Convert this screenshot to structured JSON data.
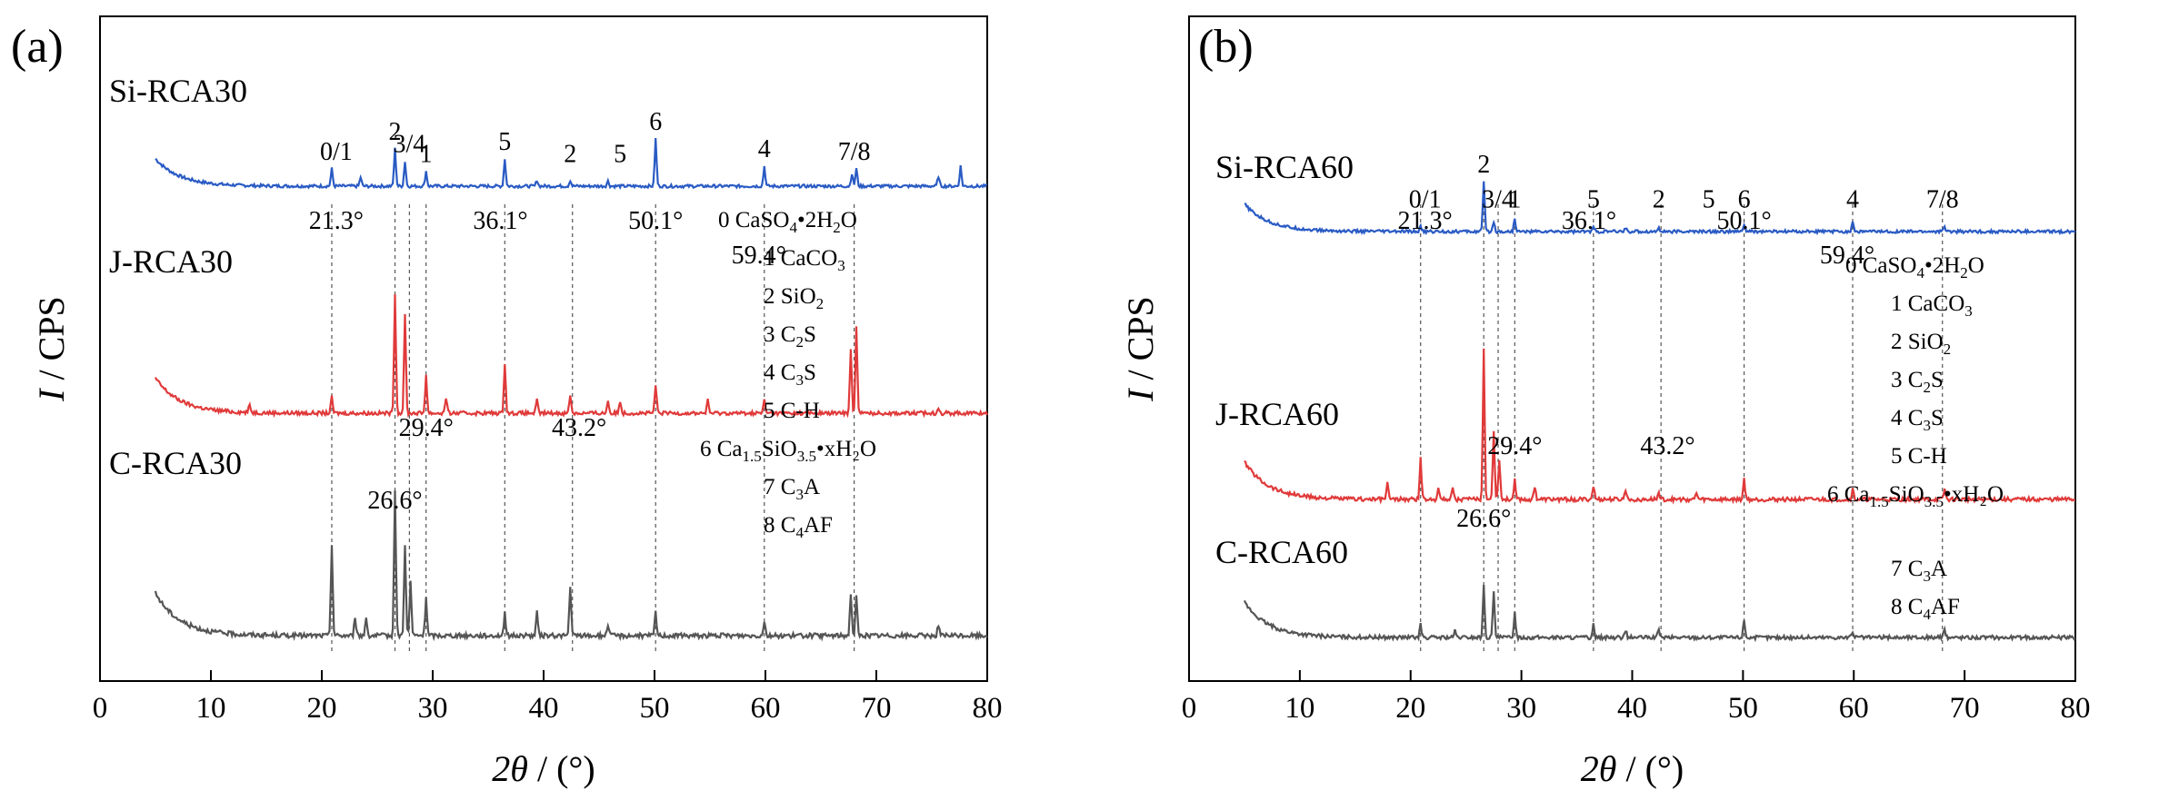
{
  "chart_data": [
    {
      "panel": "(a)",
      "type": "line",
      "ylabel_italic": "I",
      "ylabel_rest": " / CPS",
      "xlabel_theta": "2θ",
      "xlabel_rest": " / (°)",
      "xlim": [
        0,
        80
      ],
      "xticks": [
        0,
        10,
        20,
        30,
        40,
        50,
        60,
        70,
        80
      ],
      "series": [
        {
          "name": "Si-RCA30",
          "color": "#2a5bc4",
          "baseline": 2.15,
          "peaks": [
            [
              20.9,
              0.35
            ],
            [
              23.5,
              0.18
            ],
            [
              26.6,
              0.75
            ],
            [
              27.5,
              0.5
            ],
            [
              29.4,
              0.3
            ],
            [
              36.5,
              0.55
            ],
            [
              39.4,
              0.12
            ],
            [
              42.4,
              0.12
            ],
            [
              45.8,
              0.1
            ],
            [
              50.1,
              0.95
            ],
            [
              59.9,
              0.4
            ],
            [
              67.8,
              0.25
            ],
            [
              68.2,
              0.35
            ],
            [
              75.6,
              0.2
            ],
            [
              77.6,
              0.4
            ]
          ]
        },
        {
          "name": "J-RCA30",
          "color": "#e03a3a",
          "baseline": 1.2,
          "peaks": [
            [
              13.5,
              0.12
            ],
            [
              20.9,
              0.25
            ],
            [
              26.6,
              1.9
            ],
            [
              27.5,
              1.55
            ],
            [
              29.4,
              0.6
            ],
            [
              31.2,
              0.25
            ],
            [
              36.5,
              0.8
            ],
            [
              39.4,
              0.2
            ],
            [
              42.4,
              0.3
            ],
            [
              45.8,
              0.2
            ],
            [
              46.9,
              0.2
            ],
            [
              50.1,
              0.45
            ],
            [
              54.8,
              0.2
            ],
            [
              59.9,
              0.2
            ],
            [
              67.7,
              1.0
            ],
            [
              68.2,
              1.35
            ],
            [
              75.6,
              0.1
            ]
          ]
        },
        {
          "name": "C-RCA30",
          "color": "#555555",
          "baseline": 0.15,
          "peaks": [
            [
              20.9,
              1.2
            ],
            [
              23.0,
              0.25
            ],
            [
              24.0,
              0.25
            ],
            [
              26.6,
              1.9
            ],
            [
              27.5,
              1.2
            ],
            [
              28.0,
              0.7
            ],
            [
              29.4,
              0.5
            ],
            [
              36.5,
              0.3
            ],
            [
              39.4,
              0.3
            ],
            [
              42.4,
              0.65
            ],
            [
              45.8,
              0.15
            ],
            [
              50.1,
              0.3
            ],
            [
              59.9,
              0.2
            ],
            [
              67.7,
              0.55
            ],
            [
              68.2,
              0.5
            ],
            [
              75.6,
              0.15
            ]
          ]
        }
      ],
      "peak_labels": [
        {
          "text": "0/1",
          "x": 21.3,
          "series": "Si-RCA30"
        },
        {
          "text": "2",
          "x": 26.6,
          "series": "Si-RCA30"
        },
        {
          "text": "3/4",
          "x": 27.9,
          "series": "Si-RCA30"
        },
        {
          "text": "1",
          "x": 29.4,
          "series": "Si-RCA30"
        },
        {
          "text": "5",
          "x": 36.5,
          "series": "Si-RCA30"
        },
        {
          "text": "2",
          "x": 42.4,
          "series": "Si-RCA30"
        },
        {
          "text": "5",
          "x": 46.9,
          "series": "Si-RCA30"
        },
        {
          "text": "6",
          "x": 50.1,
          "series": "Si-RCA30"
        },
        {
          "text": "4",
          "x": 59.9,
          "series": "Si-RCA30"
        },
        {
          "text": "7/8",
          "x": 68.0,
          "series": "Si-RCA30"
        }
      ],
      "reference_lines": [
        20.9,
        26.6,
        27.9,
        29.4,
        36.5,
        42.6,
        50.1,
        59.9,
        68.0
      ],
      "angle_labels": [
        {
          "text": "21.3°",
          "x": 21.3,
          "level": "top"
        },
        {
          "text": "36.1°",
          "x": 36.1,
          "level": "top"
        },
        {
          "text": "50.1°",
          "x": 50.1,
          "level": "top"
        },
        {
          "text": "59.4°",
          "x": 59.4,
          "level": "mid"
        },
        {
          "text": "29.4°",
          "x": 29.4,
          "level": "lower"
        },
        {
          "text": "43.2°",
          "x": 43.2,
          "level": "lower"
        },
        {
          "text": "26.6°",
          "x": 26.6,
          "level": "bottom"
        }
      ],
      "legend": [
        {
          "prefix": "0 CaSO",
          "sub": "4",
          "suffix": "•2H",
          "sub2": "2",
          "suffix2": "O"
        },
        {
          "prefix": "1 CaCO",
          "sub": "3",
          "suffix": "",
          "sub2": "",
          "suffix2": ""
        },
        {
          "prefix": "2 SiO",
          "sub": "2",
          "suffix": "",
          "sub2": "",
          "suffix2": ""
        },
        {
          "prefix": "3 C",
          "sub": "2",
          "suffix": "S",
          "sub2": "",
          "suffix2": ""
        },
        {
          "prefix": "4 C",
          "sub": "3",
          "suffix": "S",
          "sub2": "",
          "suffix2": ""
        },
        {
          "prefix": "5 C-H",
          "sub": "",
          "suffix": "",
          "sub2": "",
          "suffix2": ""
        },
        {
          "prefix": "6 Ca",
          "sub": "1.5",
          "suffix": "SiO",
          "sub2": "3.5",
          "suffix2": "•xH₂O"
        },
        {
          "prefix": "7 C",
          "sub": "3",
          "suffix": "A",
          "sub2": "",
          "suffix2": ""
        },
        {
          "prefix": "8 C",
          "sub": "4",
          "suffix": "AF",
          "sub2": "",
          "suffix2": ""
        }
      ]
    },
    {
      "panel": "(b)",
      "type": "line",
      "ylabel_italic": "I",
      "ylabel_rest": " / CPS",
      "xlabel_theta": "2θ",
      "xlabel_rest": " / (°)",
      "xlim": [
        0,
        80
      ],
      "xticks": [
        0,
        10,
        20,
        30,
        40,
        50,
        60,
        70,
        80
      ],
      "series": [
        {
          "name": "Si-RCA60",
          "color": "#2a5bc4",
          "baseline": 2.35,
          "peaks": [
            [
              20.9,
              0.1
            ],
            [
              26.6,
              1.0
            ],
            [
              27.5,
              0.2
            ],
            [
              29.4,
              0.25
            ],
            [
              36.5,
              0.1
            ],
            [
              39.4,
              0.08
            ],
            [
              42.4,
              0.08
            ],
            [
              50.1,
              0.15
            ],
            [
              59.9,
              0.2
            ],
            [
              68.2,
              0.1
            ]
          ]
        },
        {
          "name": "J-RCA60",
          "color": "#e03a3a",
          "baseline": 1.0,
          "peaks": [
            [
              17.9,
              0.25
            ],
            [
              20.9,
              0.6
            ],
            [
              22.5,
              0.2
            ],
            [
              23.8,
              0.2
            ],
            [
              26.6,
              2.2
            ],
            [
              27.5,
              1.0
            ],
            [
              28.0,
              0.6
            ],
            [
              29.4,
              0.3
            ],
            [
              31.2,
              0.2
            ],
            [
              36.5,
              0.2
            ],
            [
              39.4,
              0.15
            ],
            [
              42.4,
              0.1
            ],
            [
              45.8,
              0.1
            ],
            [
              50.1,
              0.3
            ],
            [
              59.9,
              0.15
            ],
            [
              68.2,
              0.15
            ]
          ]
        },
        {
          "name": "C-RCA60",
          "color": "#555555",
          "baseline": 0.15,
          "peaks": [
            [
              20.9,
              0.2
            ],
            [
              24.0,
              0.1
            ],
            [
              26.6,
              0.8
            ],
            [
              27.5,
              0.7
            ],
            [
              29.4,
              0.4
            ],
            [
              36.5,
              0.2
            ],
            [
              39.4,
              0.12
            ],
            [
              42.4,
              0.12
            ],
            [
              50.1,
              0.28
            ],
            [
              59.9,
              0.1
            ],
            [
              68.2,
              0.12
            ]
          ]
        }
      ],
      "peak_labels": [
        {
          "text": "0/1",
          "x": 21.3,
          "series": "Si-RCA60"
        },
        {
          "text": "2",
          "x": 26.6,
          "series": "Si-RCA60"
        },
        {
          "text": "3/4",
          "x": 27.9,
          "series": "Si-RCA60"
        },
        {
          "text": "1",
          "x": 29.4,
          "series": "Si-RCA60"
        },
        {
          "text": "5",
          "x": 36.5,
          "series": "Si-RCA60"
        },
        {
          "text": "2",
          "x": 42.4,
          "series": "Si-RCA60"
        },
        {
          "text": "5",
          "x": 46.9,
          "series": "Si-RCA60"
        },
        {
          "text": "6",
          "x": 50.1,
          "series": "Si-RCA60"
        },
        {
          "text": "4",
          "x": 59.9,
          "series": "Si-RCA60"
        },
        {
          "text": "7/8",
          "x": 68.0,
          "series": "Si-RCA60"
        }
      ],
      "reference_lines": [
        20.9,
        26.6,
        27.9,
        29.4,
        36.5,
        42.6,
        50.1,
        59.9,
        68.0
      ],
      "angle_labels": [
        {
          "text": "21.3°",
          "x": 21.3,
          "level": "top"
        },
        {
          "text": "36.1°",
          "x": 36.1,
          "level": "top"
        },
        {
          "text": "50.1°",
          "x": 50.1,
          "level": "top"
        },
        {
          "text": "59.4°",
          "x": 59.4,
          "level": "mid"
        },
        {
          "text": "29.4°",
          "x": 29.4,
          "level": "lower"
        },
        {
          "text": "43.2°",
          "x": 43.2,
          "level": "lower"
        },
        {
          "text": "26.6°",
          "x": 26.6,
          "level": "bottom"
        }
      ],
      "legend": [
        {
          "prefix": "0 CaSO",
          "sub": "4",
          "suffix": "•2H",
          "sub2": "2",
          "suffix2": "O"
        },
        {
          "prefix": "1 CaCO",
          "sub": "3",
          "suffix": "",
          "sub2": "",
          "suffix2": ""
        },
        {
          "prefix": "2 SiO",
          "sub": "2",
          "suffix": "",
          "sub2": "",
          "suffix2": ""
        },
        {
          "prefix": "3 C",
          "sub": "2",
          "suffix": "S",
          "sub2": "",
          "suffix2": ""
        },
        {
          "prefix": "4 C",
          "sub": "3",
          "suffix": "S",
          "sub2": "",
          "suffix2": ""
        },
        {
          "prefix": "5 C-H",
          "sub": "",
          "suffix": "",
          "sub2": "",
          "suffix2": ""
        },
        {
          "prefix": "6 Ca",
          "sub": "1.5",
          "suffix": "SiO",
          "sub2": "3.5",
          "suffix2": "•xH₂O"
        },
        {
          "prefix": "7 C",
          "sub": "3",
          "suffix": "A",
          "sub2": "",
          "suffix2": ""
        },
        {
          "prefix": "8 C",
          "sub": "4",
          "suffix": "AF",
          "sub2": "",
          "suffix2": ""
        }
      ]
    }
  ]
}
